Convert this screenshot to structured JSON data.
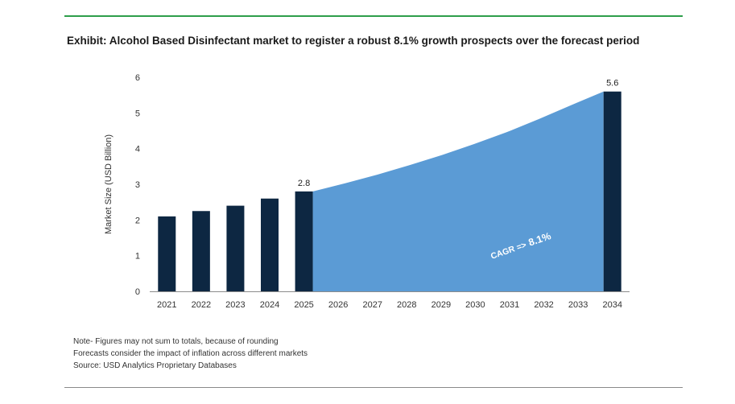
{
  "exhibit_title": "Exhibit: Alcohol Based Disinfectant market to register a robust 8.1% growth prospects over the forecast period",
  "notes": [
    "Note- Figures may not sum to totals, because of rounding",
    "Forecasts consider the impact of inflation across different markets",
    "Source: USD Analytics Proprietary Databases"
  ],
  "colors": {
    "top_rule": "#2e9e4a",
    "bar": "#0d2742",
    "area": "#5b9bd5",
    "axis": "#8c8c8c"
  },
  "chart_data": {
    "type": "bar",
    "title": "",
    "xlabel": "",
    "ylabel": "Market Size (USD Billion)",
    "ylim": [
      0,
      6
    ],
    "yticks": [
      0,
      1,
      2,
      3,
      4,
      5,
      6
    ],
    "grid": false,
    "categories": [
      "2021",
      "2022",
      "2023",
      "2024",
      "2025",
      "2026",
      "2027",
      "2028",
      "2029",
      "2030",
      "2031",
      "2032",
      "2033",
      "2034"
    ],
    "bars": [
      {
        "category": "2021",
        "value": 2.1
      },
      {
        "category": "2022",
        "value": 2.25
      },
      {
        "category": "2023",
        "value": 2.4
      },
      {
        "category": "2024",
        "value": 2.6
      },
      {
        "category": "2025",
        "value": 2.8,
        "label": "2.8"
      },
      {
        "category": "2034",
        "value": 5.6,
        "label": "5.6"
      }
    ],
    "forecast_area": {
      "x": [
        "2025",
        "2026",
        "2027",
        "2028",
        "2029",
        "2030",
        "2031",
        "2032",
        "2033",
        "2034"
      ],
      "values": [
        2.8,
        3.03,
        3.27,
        3.54,
        3.82,
        4.13,
        4.46,
        4.83,
        5.22,
        5.6
      ]
    },
    "annotation": {
      "prefix": "CAGR =>",
      "value": "8.1%"
    }
  }
}
